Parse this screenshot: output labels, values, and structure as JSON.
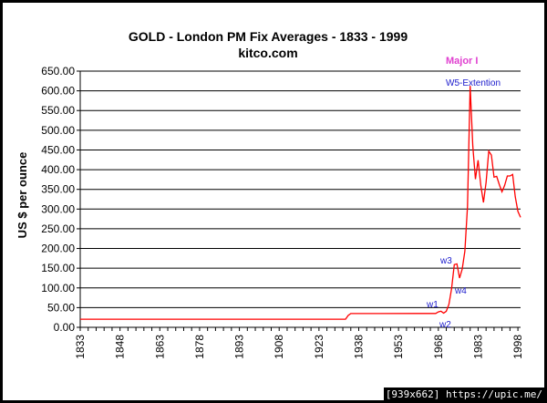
{
  "chart_data": {
    "type": "line",
    "title": "GOLD  -  London PM Fix Averages  -   1833 - 1999",
    "subtitle": "kitco.com",
    "ylabel": "US $ per ounce",
    "xlabel": "",
    "xlim": [
      1833,
      1999
    ],
    "ylim": [
      0,
      650
    ],
    "y_ticks": [
      "0.00",
      "50.00",
      "100.00",
      "150.00",
      "200.00",
      "250.00",
      "300.00",
      "350.00",
      "400.00",
      "450.00",
      "500.00",
      "550.00",
      "600.00",
      "650.00"
    ],
    "x_ticks": [
      "1833",
      "1848",
      "1863",
      "1878",
      "1893",
      "1908",
      "1923",
      "1938",
      "1953",
      "1968",
      "1983",
      "1998"
    ],
    "grid": "horizontal",
    "line_color": "#ff0000",
    "series": [
      {
        "x": [
          1833,
          1900,
          1933,
          1934,
          1935,
          1945,
          1946,
          1960,
          1965,
          1967,
          1968,
          1969,
          1970,
          1971,
          1972,
          1973,
          1974,
          1975,
          1976,
          1977,
          1978,
          1979,
          1980,
          1981,
          1982,
          1983,
          1984,
          1985,
          1986,
          1987,
          1988,
          1989,
          1990,
          1991,
          1992,
          1993,
          1994,
          1995,
          1996,
          1997,
          1998,
          1999
        ],
        "y": [
          20.67,
          20.67,
          20.67,
          30,
          35,
          35,
          35,
          35.27,
          35.12,
          35.19,
          39,
          41,
          36,
          40.8,
          58.2,
          97.3,
          159,
          161,
          124.8,
          147.7,
          193.2,
          306.7,
          612.6,
          460,
          376,
          424,
          360,
          317,
          368,
          447,
          437,
          381,
          383,
          362,
          344,
          360,
          384,
          384,
          388,
          331,
          294,
          279
        ]
      }
    ],
    "annotations": [
      {
        "text": "Major I",
        "color": "#e040d0"
      },
      {
        "text": "W5-Extention",
        "color": "#1a1acc"
      },
      {
        "text": "w3",
        "color": "#1a1acc"
      },
      {
        "text": "w4",
        "color": "#1a1acc"
      },
      {
        "text": "w1",
        "color": "#1a1acc"
      },
      {
        "text": "w2",
        "color": "#1a1acc"
      }
    ]
  },
  "watermark": "[939x662] https://upic.me/"
}
